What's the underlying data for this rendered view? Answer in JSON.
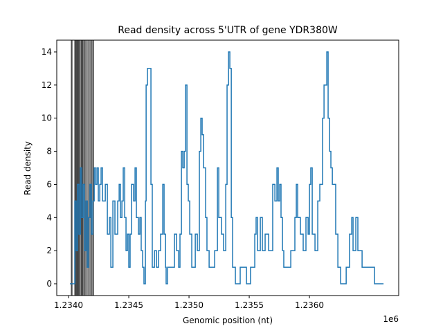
{
  "chart_data": {
    "type": "line",
    "drawstyle": "steps-post",
    "title": "Read density across 5'UTR of gene YDR380W",
    "xlabel": "Genomic position (nt)",
    "ylabel": "Read density",
    "x_offset_label": "1e6",
    "xlim": [
      1233902,
      1236741
    ],
    "ylim": [
      -0.71,
      14.71
    ],
    "xticks": [
      {
        "value": 1234000,
        "label": "1.2340"
      },
      {
        "value": 1234500,
        "label": "1.2345"
      },
      {
        "value": 1235000,
        "label": "1.2350"
      },
      {
        "value": 1235500,
        "label": "1.2355"
      },
      {
        "value": 1236000,
        "label": "1.2360"
      }
    ],
    "yticks": [
      0,
      2,
      4,
      6,
      8,
      10,
      12,
      14
    ],
    "vlines": [
      1234023,
      1234029,
      1234052,
      1234057,
      1234063,
      1234069,
      1234075,
      1234080,
      1234086,
      1234092,
      1234103,
      1234109,
      1234115,
      1234121,
      1234132,
      1234138,
      1234149,
      1234161,
      1234172,
      1234184,
      1234190,
      1234201,
      1234207
    ],
    "vline_color": "#000000",
    "x": [
      1234011,
      1234052,
      1234063,
      1234075,
      1234086,
      1234098,
      1234109,
      1234121,
      1234132,
      1234144,
      1234155,
      1234167,
      1234178,
      1234190,
      1234201,
      1234213,
      1234224,
      1234236,
      1234247,
      1234259,
      1234270,
      1234282,
      1234305,
      1234322,
      1234339,
      1234351,
      1234368,
      1234385,
      1234408,
      1234420,
      1234431,
      1234443,
      1234454,
      1234466,
      1234477,
      1234489,
      1234500,
      1234511,
      1234523,
      1234540,
      1234552,
      1234563,
      1234580,
      1234592,
      1234603,
      1234615,
      1234626,
      1234638,
      1234644,
      1234655,
      1234684,
      1234695,
      1234713,
      1234730,
      1234747,
      1234764,
      1234782,
      1234793,
      1234805,
      1234810,
      1234822,
      1234879,
      1234897,
      1234914,
      1234925,
      1234937,
      1234948,
      1234960,
      1234971,
      1234983,
      1234994,
      1235006,
      1235023,
      1235052,
      1235069,
      1235086,
      1235098,
      1235109,
      1235121,
      1235138,
      1235149,
      1235167,
      1235213,
      1235236,
      1235247,
      1235270,
      1235287,
      1235305,
      1235316,
      1235328,
      1235339,
      1235351,
      1235362,
      1235385,
      1235425,
      1235477,
      1235511,
      1235546,
      1235557,
      1235569,
      1235592,
      1235609,
      1235632,
      1235661,
      1235695,
      1235713,
      1235730,
      1235741,
      1235753,
      1235764,
      1235776,
      1235787,
      1235845,
      1235879,
      1235891,
      1235902,
      1235925,
      1235948,
      1235971,
      1235989,
      1236000,
      1236011,
      1236023,
      1236046,
      1236069,
      1236086,
      1236109,
      1236121,
      1236144,
      1236155,
      1236167,
      1236178,
      1236190,
      1236218,
      1236236,
      1236259,
      1236305,
      1236333,
      1236351,
      1236362,
      1236385,
      1236402,
      1236437,
      1236540,
      1236615
    ],
    "series": [
      {
        "color": "#1f77b4",
        "values": [
          0,
          5,
          2,
          6,
          3,
          7,
          4,
          6,
          2,
          5,
          1,
          4,
          6,
          3,
          5,
          7,
          6,
          7,
          5,
          6,
          7,
          5,
          6,
          3,
          4,
          1,
          5,
          3,
          5,
          6,
          4,
          5,
          7,
          4,
          2,
          3,
          1,
          3,
          6,
          5,
          7,
          4,
          3,
          4,
          2,
          1,
          0,
          5,
          12,
          13,
          6,
          1,
          2,
          1,
          2,
          3,
          6,
          3,
          1,
          0,
          1,
          3,
          2,
          1,
          3,
          8,
          7,
          8,
          12,
          6,
          5,
          3,
          1,
          3,
          2,
          8,
          10,
          9,
          7,
          4,
          2,
          1,
          2,
          7,
          4,
          3,
          2,
          6,
          12,
          14,
          13,
          4,
          1,
          0,
          1,
          0,
          1,
          3,
          4,
          2,
          4,
          2,
          3,
          2,
          6,
          5,
          7,
          5,
          6,
          4,
          2,
          1,
          2,
          4,
          6,
          4,
          3,
          2,
          4,
          3,
          6,
          7,
          3,
          2,
          5,
          6,
          10,
          12,
          14,
          10,
          8,
          7,
          6,
          3,
          1,
          0,
          1,
          3,
          4,
          2,
          4,
          2,
          1,
          0,
          0
        ]
      }
    ]
  }
}
